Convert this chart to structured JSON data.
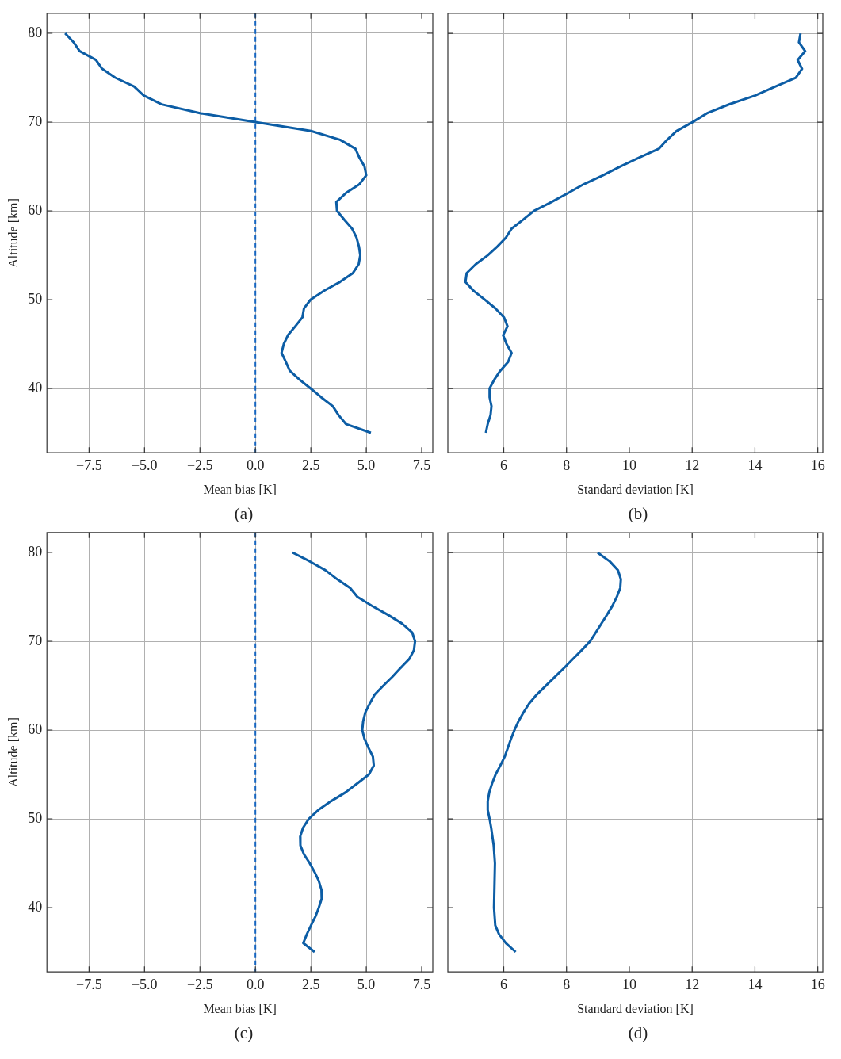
{
  "chart_data": [
    {
      "type": "line",
      "xlabel": "Mean bias [K]",
      "ylabel": "Altitude [km]",
      "annotations": [
        "(a)"
      ],
      "xlim": [
        -9.4,
        8.0
      ],
      "ylim": [
        32.75,
        82.25
      ],
      "xticks": [
        {
          "value": -7.5,
          "label": "−7.5"
        },
        {
          "value": -5,
          "label": "−5.0"
        },
        {
          "value": -2.5,
          "label": "−2.5"
        },
        {
          "value": 0,
          "label": "0.0"
        },
        {
          "value": 2.5,
          "label": "2.5"
        },
        {
          "value": 5,
          "label": "5.0"
        },
        {
          "value": 7.5,
          "label": "7.5"
        }
      ],
      "yticks": [
        40,
        50,
        60,
        70,
        80
      ],
      "grid": true,
      "ref_lines": [
        {
          "axis": "x",
          "value": 0,
          "color": "#1565c0",
          "line_style": "dashed"
        }
      ],
      "series": [
        {
          "color": "#0c5da5",
          "x": [
            -8.58,
            -8.2,
            -7.93,
            -7.19,
            -6.91,
            -6.32,
            -5.47,
            -5.04,
            -4.23,
            -2.5,
            0,
            2.51,
            3.82,
            4.51,
            4.69,
            4.92,
            5.0,
            4.69,
            4.08,
            3.65,
            3.68,
            4.01,
            4.36,
            4.56,
            4.67,
            4.73,
            4.66,
            4.4,
            3.82,
            3.1,
            2.49,
            2.19,
            2.12,
            1.8,
            1.47,
            1.28,
            1.18,
            1.37,
            1.55,
            1.99,
            2.49,
            2.97,
            3.49,
            3.75,
            4.08,
            5.21
          ],
          "values": [
            80,
            79,
            78,
            77,
            76,
            75,
            74,
            73,
            72,
            71,
            70,
            69,
            68,
            67,
            66,
            65,
            64,
            63,
            62,
            61,
            60,
            59,
            58,
            57,
            56,
            55,
            54,
            53,
            52,
            51,
            50,
            49,
            48,
            47,
            46,
            45,
            44,
            43,
            42,
            41,
            40,
            39,
            38,
            37,
            36,
            35
          ]
        }
      ]
    },
    {
      "type": "line",
      "xlabel": "Standard deviation [K]",
      "xlim": [
        4.22,
        16.16
      ],
      "ylim": [
        32.75,
        82.25
      ],
      "xticks": [
        6,
        8,
        10,
        12,
        14,
        16
      ],
      "yticks": [
        40,
        50,
        60,
        70,
        80
      ],
      "grid": true,
      "tick_labels": "x",
      "annotations": [
        "(b)"
      ],
      "series": [
        {
          "color": "#0c5da5",
          "x": [
            15.45,
            15.4,
            15.6,
            15.36,
            15.5,
            15.3,
            14.64,
            14.0,
            13.17,
            12.47,
            12.01,
            11.5,
            11.2,
            10.94,
            10.31,
            9.71,
            9.15,
            8.54,
            8.04,
            7.52,
            6.96,
            6.61,
            6.25,
            6.07,
            5.8,
            5.49,
            5.11,
            4.82,
            4.78,
            5.04,
            5.4,
            5.74,
            6.01,
            6.12,
            5.98,
            6.09,
            6.25,
            6.14,
            5.89,
            5.7,
            5.55,
            5.55,
            5.61,
            5.58,
            5.49,
            5.43
          ],
          "values": [
            80,
            79,
            78,
            77,
            76,
            75,
            74,
            73,
            72,
            71,
            70,
            69,
            68,
            67,
            66,
            65,
            64,
            63,
            62,
            61,
            60,
            59,
            58,
            57,
            56,
            55,
            54,
            53,
            52,
            51,
            50,
            49,
            48,
            47,
            46,
            45,
            44,
            43,
            42,
            41,
            40,
            39,
            38,
            37,
            36,
            35
          ]
        }
      ]
    },
    {
      "type": "line",
      "xlabel": "Mean bias [K]",
      "ylabel": "Altitude [km]",
      "annotations": [
        "(c)"
      ],
      "xlim": [
        -9.4,
        8.0
      ],
      "ylim": [
        32.75,
        82.25
      ],
      "xticks": [
        {
          "value": -7.5,
          "label": "−7.5"
        },
        {
          "value": -5,
          "label": "−5.0"
        },
        {
          "value": -2.5,
          "label": "−2.5"
        },
        {
          "value": 0,
          "label": "0.0"
        },
        {
          "value": 2.5,
          "label": "2.5"
        },
        {
          "value": 5,
          "label": "5.0"
        },
        {
          "value": 7.5,
          "label": "7.5"
        }
      ],
      "yticks": [
        40,
        50,
        60,
        70,
        80
      ],
      "grid": true,
      "ref_lines": [
        {
          "axis": "x",
          "value": 0,
          "color": "#1565c0",
          "line_style": "dashed"
        }
      ],
      "series": [
        {
          "color": "#0c5da5",
          "x": [
            1.67,
            2.45,
            3.16,
            3.68,
            4.27,
            4.6,
            5.25,
            5.96,
            6.61,
            7.07,
            7.2,
            7.15,
            6.94,
            6.55,
            6.18,
            5.77,
            5.38,
            5.16,
            4.96,
            4.86,
            4.82,
            4.92,
            5.1,
            5.3,
            5.34,
            5.12,
            4.6,
            4.08,
            3.42,
            2.84,
            2.41,
            2.15,
            2.02,
            2.03,
            2.19,
            2.45,
            2.67,
            2.86,
            2.98,
            2.99,
            2.86,
            2.71,
            2.51,
            2.32,
            2.16,
            2.67
          ],
          "values": [
            80,
            79,
            78,
            77,
            76,
            75,
            74,
            73,
            72,
            71,
            70,
            69,
            68,
            67,
            66,
            65,
            64,
            63,
            62,
            61,
            60,
            59,
            58,
            57,
            56,
            55,
            54,
            53,
            52,
            51,
            50,
            49,
            48,
            47,
            46,
            45,
            44,
            43,
            42,
            41,
            40,
            39,
            38,
            37,
            36,
            35
          ]
        }
      ]
    },
    {
      "type": "line",
      "xlabel": "Standard deviation [K]",
      "xlim": [
        4.22,
        16.16
      ],
      "ylim": [
        32.75,
        82.25
      ],
      "xticks": [
        6,
        8,
        10,
        12,
        14,
        16
      ],
      "yticks": [
        40,
        50,
        60,
        70,
        80
      ],
      "grid": true,
      "tick_labels": "x",
      "annotations": [
        "(d)"
      ],
      "series": [
        {
          "color": "#0c5da5",
          "x": [
            8.99,
            9.38,
            9.64,
            9.73,
            9.71,
            9.6,
            9.46,
            9.29,
            9.11,
            8.93,
            8.75,
            8.48,
            8.2,
            7.92,
            7.63,
            7.34,
            7.05,
            6.81,
            6.63,
            6.47,
            6.34,
            6.23,
            6.13,
            6.03,
            5.89,
            5.74,
            5.63,
            5.54,
            5.49,
            5.49,
            5.55,
            5.6,
            5.64,
            5.68,
            5.72,
            5.69,
            5.73,
            5.85,
            6.07,
            6.38
          ],
          "values": [
            80,
            79,
            78,
            77,
            76,
            75,
            74,
            73,
            72,
            71,
            70,
            69,
            68,
            67,
            66,
            65,
            64,
            63,
            62,
            61,
            60,
            59,
            58,
            57,
            56,
            55,
            54,
            53,
            52,
            51,
            50,
            49,
            48,
            47,
            45,
            40,
            38,
            37,
            36,
            35
          ]
        }
      ]
    }
  ]
}
